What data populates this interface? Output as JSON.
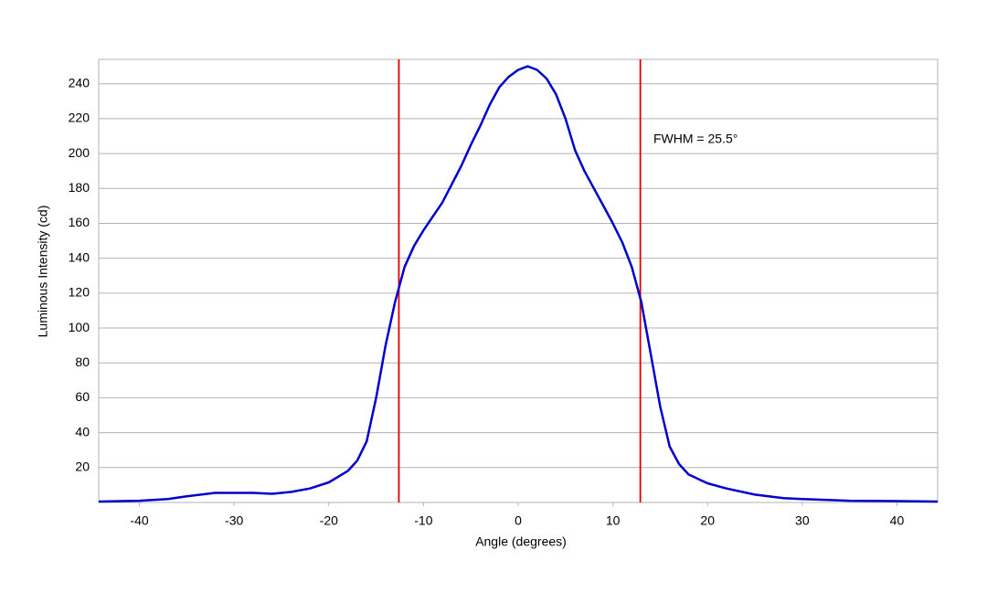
{
  "chart_data": {
    "type": "line",
    "x_label": "Angle (degrees)",
    "y_label": "Luminous Intensity (cd)",
    "annotation": "FWHM = 25.5°",
    "xlim": [
      -44.3,
      44.3
    ],
    "ylim": [
      0,
      254
    ],
    "xticks": [
      -40,
      -30,
      -20,
      -10,
      0,
      10,
      20,
      30,
      40
    ],
    "yticks": [
      20,
      40,
      60,
      80,
      100,
      120,
      140,
      160,
      180,
      200,
      220,
      240
    ],
    "grid": true,
    "vlines": [
      {
        "value": -12.6,
        "color": "#e00000"
      },
      {
        "value": 12.9,
        "color": "#e00000"
      }
    ],
    "series": [
      {
        "color": "#0000cc",
        "x": [
          -44.3,
          -40,
          -37,
          -35,
          -32,
          -30,
          -28,
          -26,
          -24,
          -22,
          -20,
          -18,
          -17,
          -16,
          -15,
          -14,
          -13,
          -12,
          -11,
          -10,
          -8,
          -6,
          -5,
          -4,
          -3,
          -2,
          -1,
          0,
          1,
          2,
          3,
          4,
          5,
          6,
          7,
          8,
          9,
          10,
          11,
          12,
          13,
          14,
          15,
          16,
          17,
          18,
          20,
          22,
          25,
          28,
          30,
          35,
          40,
          44.3
        ],
        "values": [
          0.5,
          1,
          2,
          3.5,
          5.5,
          5.5,
          5.5,
          5,
          6,
          8,
          11.5,
          18,
          24,
          35,
          60,
          90,
          115,
          135,
          147,
          156,
          172,
          193,
          205,
          216,
          228,
          238,
          244,
          248,
          250,
          248,
          243,
          234,
          220,
          202,
          190,
          180,
          170,
          160,
          149,
          135,
          115,
          85,
          55,
          32,
          22,
          16,
          11,
          8,
          4.5,
          2.5,
          2,
          1,
          0.8,
          0.5
        ]
      }
    ]
  }
}
